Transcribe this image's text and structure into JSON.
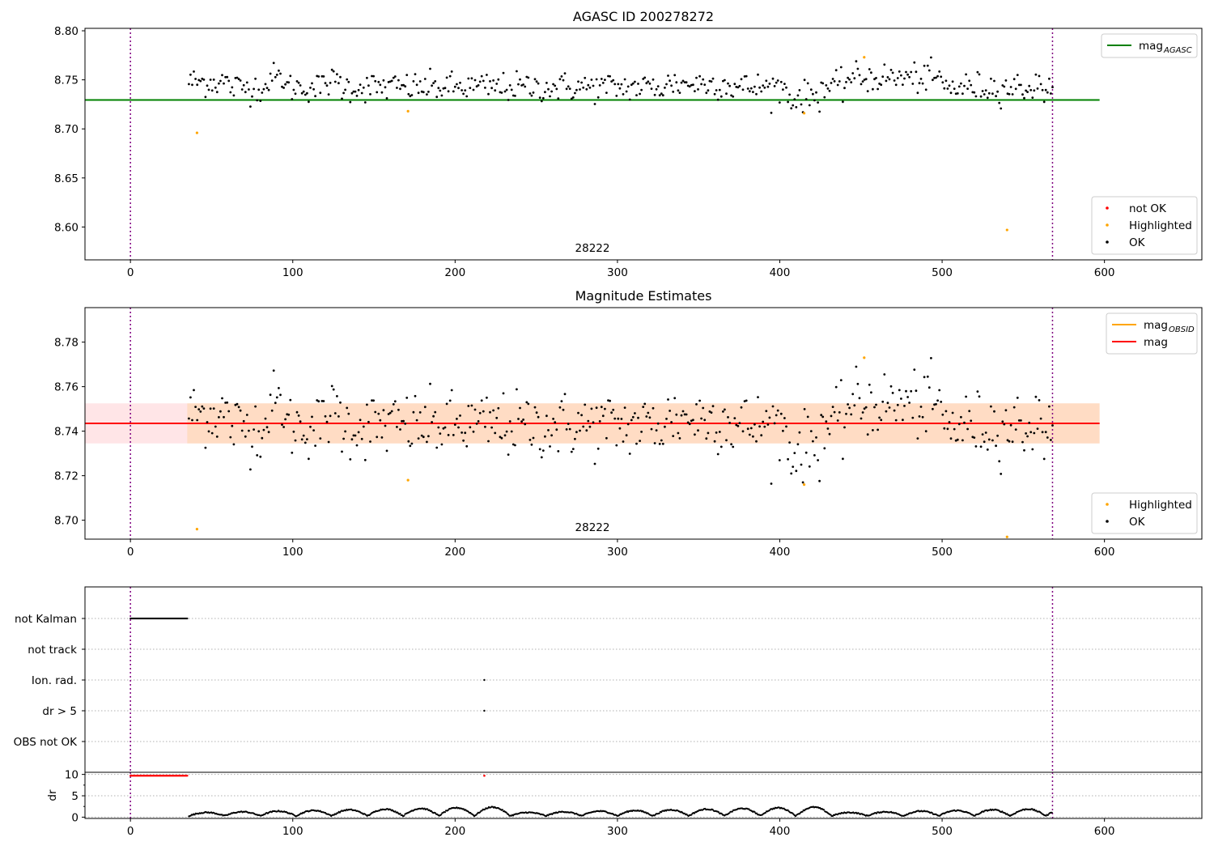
{
  "figure": {
    "title1": "AGASC ID 200278272",
    "title2": "Magnitude Estimates"
  },
  "chart_data": [
    {
      "type": "scatter",
      "title": "AGASC ID 200278272",
      "annotation": "28222",
      "xlim": [
        -28,
        660
      ],
      "ylim": [
        8.5665,
        8.8025
      ],
      "x_ticks": [
        0,
        100,
        200,
        300,
        400,
        500,
        600
      ],
      "y_ticks": [
        8.6,
        8.65,
        8.7,
        8.75,
        8.8
      ],
      "y_tick_labels": [
        "8.60",
        "8.65",
        "8.70",
        "8.75",
        "8.80"
      ],
      "vlines": [
        0,
        568
      ],
      "lines": [
        {
          "name": "mag_AGASC",
          "label": "mag",
          "subscript": "AGASC",
          "y": 8.7295,
          "x_range": [
            -28,
            597
          ],
          "color": "#008000"
        }
      ],
      "series": [
        {
          "name": "OK",
          "color": "#000000",
          "x_range": [
            36,
            568
          ],
          "n": 520
        },
        {
          "name": "Highlighted",
          "color": "#FFA500",
          "points": [
            [
              41,
              8.696
            ],
            [
              171,
              8.718
            ],
            [
              415,
              8.716
            ],
            [
              452,
              8.773
            ],
            [
              540,
              8.597
            ]
          ]
        },
        {
          "name": "not OK",
          "color": "#FF0000",
          "points": []
        }
      ],
      "legends": [
        {
          "position": "top-right",
          "entries": [
            {
              "label": "mag",
              "sub": "AGASC",
              "kind": "line",
              "color": "#008000"
            }
          ]
        },
        {
          "position": "bottom-right",
          "entries": [
            {
              "label": "not OK",
              "kind": "dot",
              "color": "#FF0000"
            },
            {
              "label": "Highlighted",
              "kind": "dot",
              "color": "#FFA500"
            },
            {
              "label": "OK",
              "kind": "dot",
              "color": "#000000"
            }
          ]
        }
      ]
    },
    {
      "type": "scatter",
      "title": "Magnitude Estimates",
      "annotation": "28222",
      "xlim": [
        -28,
        660
      ],
      "ylim": [
        8.6915,
        8.7955
      ],
      "x_ticks": [
        0,
        100,
        200,
        300,
        400,
        500,
        600
      ],
      "y_ticks": [
        8.7,
        8.72,
        8.74,
        8.76,
        8.78
      ],
      "y_tick_labels": [
        "8.70",
        "8.72",
        "8.74",
        "8.76",
        "8.78"
      ],
      "vlines": [
        0,
        568
      ],
      "lines": [
        {
          "name": "mag",
          "label": "mag",
          "y": 8.7435,
          "x_range": [
            -28,
            597
          ],
          "color": "#FF0000"
        }
      ],
      "bands": [
        {
          "y": [
            8.7345,
            8.7525
          ],
          "x_range": [
            -28,
            597
          ],
          "color": "rgba(255,150,160,0.25)"
        },
        {
          "y": [
            8.7345,
            8.7525
          ],
          "x_range": [
            35,
            597
          ],
          "color": "rgba(255,165,0,0.15)"
        }
      ],
      "series": [
        {
          "name": "OK",
          "color": "#000000",
          "x_range": [
            36,
            568
          ],
          "n": 520
        },
        {
          "name": "Highlighted",
          "color": "#FFA500",
          "points": [
            [
              41,
              8.696
            ],
            [
              171,
              8.718
            ],
            [
              415,
              8.716
            ],
            [
              452,
              8.773
            ],
            [
              540,
              8.6925
            ]
          ]
        }
      ],
      "legends": [
        {
          "position": "top-right",
          "entries": [
            {
              "label": "mag",
              "sub": "OBSID",
              "kind": "line",
              "color": "#FFA500"
            },
            {
              "label": "mag",
              "kind": "line",
              "color": "#FF0000"
            }
          ]
        },
        {
          "position": "bottom-right",
          "entries": [
            {
              "label": "Highlighted",
              "kind": "dot",
              "color": "#FFA500"
            },
            {
              "label": "OK",
              "kind": "dot",
              "color": "#000000"
            }
          ]
        }
      ]
    },
    {
      "type": "scatter",
      "title": "",
      "xlim": [
        -28,
        660
      ],
      "categories": [
        "not Kalman",
        "not track",
        "Ion. rad.",
        "dr > 5",
        "OBS not OK"
      ],
      "flag_points": {
        "not Kalman": {
          "x_range": [
            0,
            35
          ],
          "step": 0.5
        },
        "Ion. rad.": {
          "x": [
            218
          ]
        },
        "dr > 5": {
          "x": [
            218
          ]
        }
      },
      "vlines": [
        0,
        568
      ]
    },
    {
      "type": "scatter",
      "title": "",
      "ylabel": "dr",
      "xlim": [
        -28,
        660
      ],
      "ylim": [
        -0.3,
        10.5
      ],
      "x_ticks": [
        0,
        100,
        200,
        300,
        400,
        500,
        600
      ],
      "y_ticks": [
        0,
        5,
        10
      ],
      "y_tick_labels": [
        "0",
        "5",
        "10"
      ],
      "vlines": [
        0,
        568
      ],
      "series": [
        {
          "name": "dr clipped",
          "color": "#FF0000",
          "x_range": [
            0,
            35
          ],
          "y": 9.7,
          "extra": [
            218
          ]
        },
        {
          "name": "dr",
          "color": "#000000",
          "x_range": [
            36,
            568
          ]
        }
      ]
    }
  ]
}
